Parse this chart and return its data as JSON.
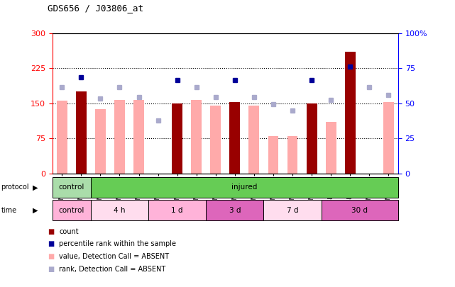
{
  "title": "GDS656 / J03806_at",
  "samples": [
    "GSM15760",
    "GSM15761",
    "GSM15762",
    "GSM15763",
    "GSM15764",
    "GSM15765",
    "GSM15766",
    "GSM15768",
    "GSM15769",
    "GSM15770",
    "GSM15772",
    "GSM15773",
    "GSM15779",
    "GSM15780",
    "GSM15781",
    "GSM15782",
    "GSM15783",
    "GSM15784"
  ],
  "count_present": [
    null,
    175,
    null,
    null,
    null,
    null,
    150,
    null,
    null,
    153,
    null,
    null,
    null,
    150,
    null,
    260,
    null,
    null
  ],
  "count_absent": [
    155,
    null,
    137,
    157,
    157,
    null,
    null,
    157,
    145,
    null,
    145,
    80,
    80,
    null,
    110,
    null,
    null,
    152
  ],
  "rank_present": [
    null,
    205,
    null,
    null,
    null,
    null,
    200,
    null,
    null,
    200,
    null,
    null,
    null,
    200,
    null,
    228,
    null,
    null
  ],
  "rank_absent": [
    185,
    null,
    160,
    185,
    163,
    113,
    null,
    185,
    163,
    null,
    163,
    148,
    135,
    null,
    158,
    null,
    185,
    168
  ],
  "ylim": [
    0,
    300
  ],
  "yticks_left": [
    0,
    75,
    150,
    225,
    300
  ],
  "yticks_right_labels": [
    "0",
    "25",
    "50",
    "75",
    "100%"
  ],
  "yticks_right_vals": [
    0,
    75,
    150,
    225,
    300
  ],
  "n_samples": 18,
  "time_groups": [
    {
      "label": "control",
      "start": 0,
      "end": 2,
      "color": "#ffb3d9"
    },
    {
      "label": "4 h",
      "start": 2,
      "end": 5,
      "color": "#ffddee"
    },
    {
      "label": "1 d",
      "start": 5,
      "end": 8,
      "color": "#ffb3d9"
    },
    {
      "label": "3 d",
      "start": 8,
      "end": 11,
      "color": "#dd66bb"
    },
    {
      "label": "7 d",
      "start": 11,
      "end": 14,
      "color": "#ffddee"
    },
    {
      "label": "30 d",
      "start": 14,
      "end": 18,
      "color": "#dd66bb"
    }
  ],
  "protocol_groups": [
    {
      "label": "control",
      "start": 0,
      "end": 2,
      "color": "#aaddaa"
    },
    {
      "label": "injured",
      "start": 2,
      "end": 18,
      "color": "#66cc55"
    }
  ],
  "color_count_present": "#990000",
  "color_rank_present": "#000099",
  "color_count_absent": "#ffaaaa",
  "color_rank_absent": "#aaaacc"
}
